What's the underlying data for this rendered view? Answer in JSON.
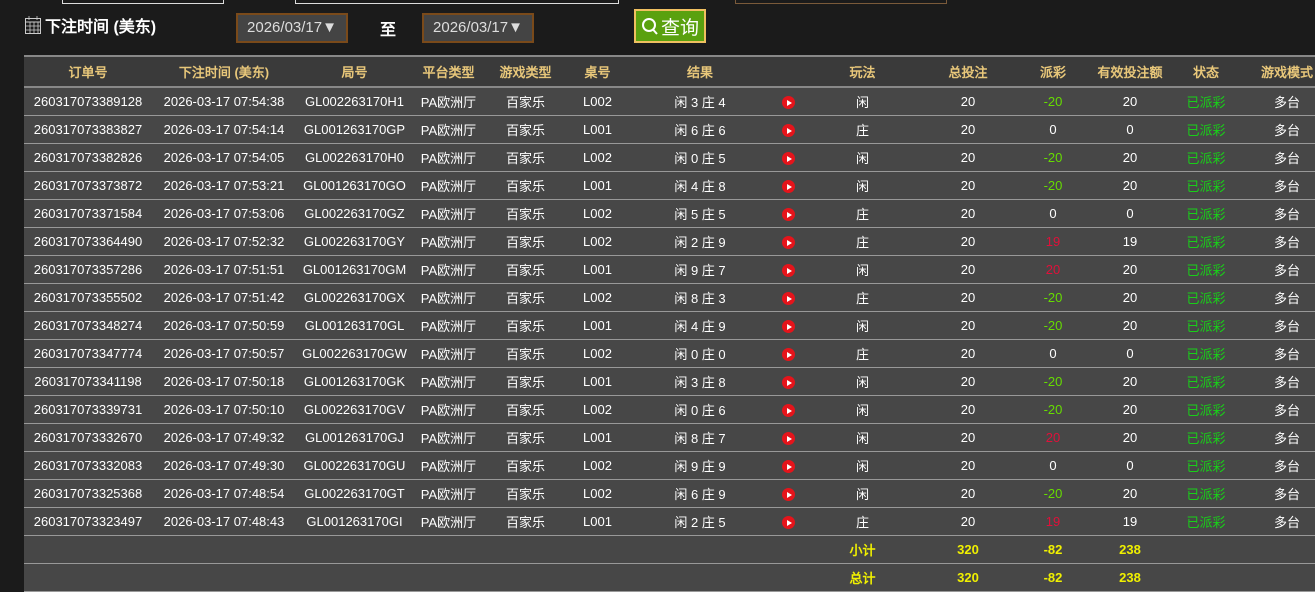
{
  "filter": {
    "label": "下注时间 (美东)",
    "from": "2026/03/17▼",
    "to_label": "至",
    "to": "2026/03/17▼",
    "query": "查询"
  },
  "headers": [
    "订单号",
    "下注时间 (美东)",
    "局号",
    "平台类型",
    "游戏类型",
    "桌号",
    "结果",
    "",
    "玩法",
    "总投注",
    "派彩",
    "有效投注额",
    "状态",
    "游戏模式"
  ],
  "rows": [
    [
      "260317073389128",
      "2026-03-17 07:54:38",
      "GL002263170H1",
      "PA欧洲厅",
      "百家乐",
      "L002",
      "闲 3 庄 4",
      "闲",
      "20",
      "-20",
      "20",
      "已派彩",
      "多台"
    ],
    [
      "260317073383827",
      "2026-03-17 07:54:14",
      "GL001263170GP",
      "PA欧洲厅",
      "百家乐",
      "L001",
      "闲 6 庄 6",
      "庄",
      "20",
      "0",
      "0",
      "已派彩",
      "多台"
    ],
    [
      "260317073382826",
      "2026-03-17 07:54:05",
      "GL002263170H0",
      "PA欧洲厅",
      "百家乐",
      "L002",
      "闲 0 庄 5",
      "闲",
      "20",
      "-20",
      "20",
      "已派彩",
      "多台"
    ],
    [
      "260317073373872",
      "2026-03-17 07:53:21",
      "GL001263170GO",
      "PA欧洲厅",
      "百家乐",
      "L001",
      "闲 4 庄 8",
      "闲",
      "20",
      "-20",
      "20",
      "已派彩",
      "多台"
    ],
    [
      "260317073371584",
      "2026-03-17 07:53:06",
      "GL002263170GZ",
      "PA欧洲厅",
      "百家乐",
      "L002",
      "闲 5 庄 5",
      "庄",
      "20",
      "0",
      "0",
      "已派彩",
      "多台"
    ],
    [
      "260317073364490",
      "2026-03-17 07:52:32",
      "GL002263170GY",
      "PA欧洲厅",
      "百家乐",
      "L002",
      "闲 2 庄 9",
      "庄",
      "20",
      "19",
      "19",
      "已派彩",
      "多台"
    ],
    [
      "260317073357286",
      "2026-03-17 07:51:51",
      "GL001263170GM",
      "PA欧洲厅",
      "百家乐",
      "L001",
      "闲 9 庄 7",
      "闲",
      "20",
      "20",
      "20",
      "已派彩",
      "多台"
    ],
    [
      "260317073355502",
      "2026-03-17 07:51:42",
      "GL002263170GX",
      "PA欧洲厅",
      "百家乐",
      "L002",
      "闲 8 庄 3",
      "庄",
      "20",
      "-20",
      "20",
      "已派彩",
      "多台"
    ],
    [
      "260317073348274",
      "2026-03-17 07:50:59",
      "GL001263170GL",
      "PA欧洲厅",
      "百家乐",
      "L001",
      "闲 4 庄 9",
      "闲",
      "20",
      "-20",
      "20",
      "已派彩",
      "多台"
    ],
    [
      "260317073347774",
      "2026-03-17 07:50:57",
      "GL002263170GW",
      "PA欧洲厅",
      "百家乐",
      "L002",
      "闲 0 庄 0",
      "庄",
      "20",
      "0",
      "0",
      "已派彩",
      "多台"
    ],
    [
      "260317073341198",
      "2026-03-17 07:50:18",
      "GL001263170GK",
      "PA欧洲厅",
      "百家乐",
      "L001",
      "闲 3 庄 8",
      "闲",
      "20",
      "-20",
      "20",
      "已派彩",
      "多台"
    ],
    [
      "260317073339731",
      "2026-03-17 07:50:10",
      "GL002263170GV",
      "PA欧洲厅",
      "百家乐",
      "L002",
      "闲 0 庄 6",
      "闲",
      "20",
      "-20",
      "20",
      "已派彩",
      "多台"
    ],
    [
      "260317073332670",
      "2026-03-17 07:49:32",
      "GL001263170GJ",
      "PA欧洲厅",
      "百家乐",
      "L001",
      "闲 8 庄 7",
      "闲",
      "20",
      "20",
      "20",
      "已派彩",
      "多台"
    ],
    [
      "260317073332083",
      "2026-03-17 07:49:30",
      "GL002263170GU",
      "PA欧洲厅",
      "百家乐",
      "L002",
      "闲 9 庄 9",
      "闲",
      "20",
      "0",
      "0",
      "已派彩",
      "多台"
    ],
    [
      "260317073325368",
      "2026-03-17 07:48:54",
      "GL002263170GT",
      "PA欧洲厅",
      "百家乐",
      "L002",
      "闲 6 庄 9",
      "闲",
      "20",
      "-20",
      "20",
      "已派彩",
      "多台"
    ],
    [
      "260317073323497",
      "2026-03-17 07:48:43",
      "GL001263170GI",
      "PA欧洲厅",
      "百家乐",
      "L001",
      "闲 2 庄 5",
      "庄",
      "20",
      "19",
      "19",
      "已派彩",
      "多台"
    ]
  ],
  "subtotal": {
    "label": "小计",
    "bet": "320",
    "payout": "-82",
    "valid": "238"
  },
  "total": {
    "label": "总计",
    "bet": "320",
    "payout": "-82",
    "valid": "238"
  },
  "colors": {
    "positive": "#e0103a",
    "negative": "#66dd00",
    "status": "#18d018",
    "summary": "#f0f000"
  }
}
